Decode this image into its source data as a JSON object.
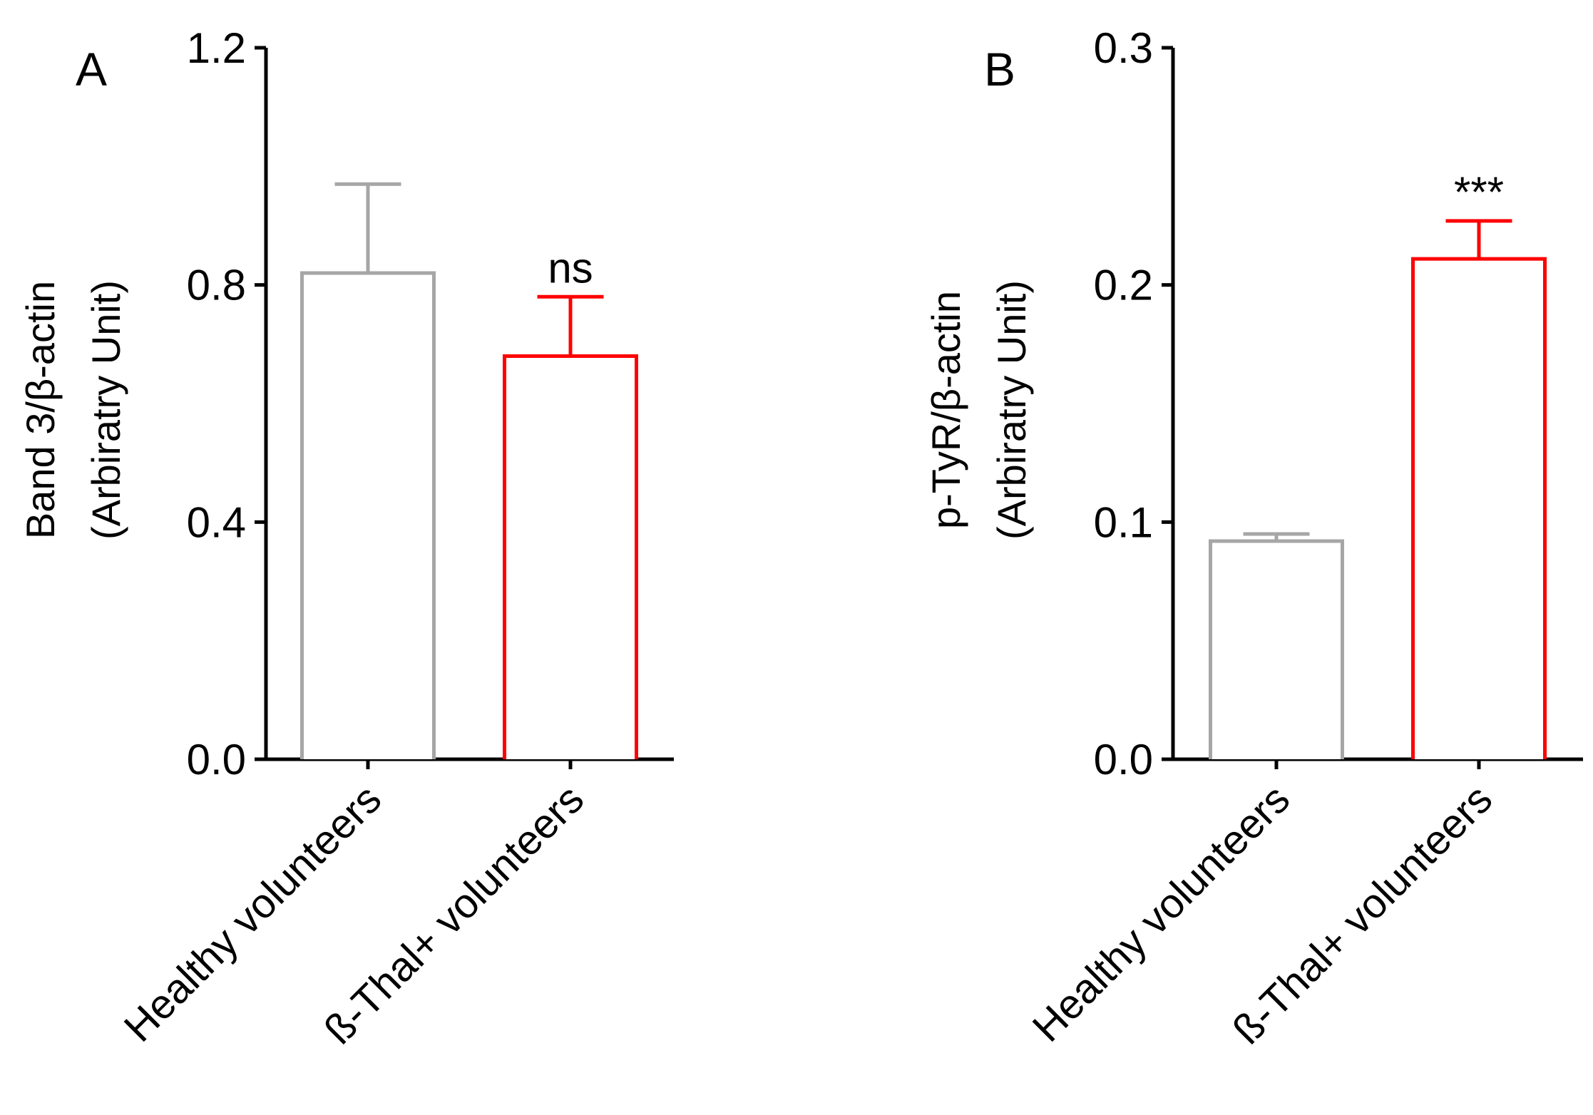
{
  "chart_data": [
    {
      "type": "bar",
      "panel_label": "A",
      "categories": [
        "Healthy volunteers",
        "ß-Thal+ volunteers"
      ],
      "values": [
        0.82,
        0.68
      ],
      "error_upper": [
        0.97,
        0.78
      ],
      "bar_colors": [
        "#a6a6a6",
        "#ff0000"
      ],
      "ylabel_lines": [
        "Band 3/β-actin",
        "(Arbiratry Unit)"
      ],
      "yticks": [
        "0.0",
        "0.4",
        "0.8",
        "1.2"
      ],
      "ytick_values": [
        0,
        0.4,
        0.8,
        1.2
      ],
      "ylim": [
        0,
        1.2
      ],
      "annotations": [
        {
          "category": "ß-Thal+ volunteers",
          "text": "ns"
        }
      ],
      "grid": false
    },
    {
      "type": "bar",
      "panel_label": "B",
      "categories": [
        "Healthy volunteers",
        "ß-Thal+ volunteers"
      ],
      "values": [
        0.092,
        0.211
      ],
      "error_upper": [
        0.095,
        0.227
      ],
      "bar_colors": [
        "#a6a6a6",
        "#ff0000"
      ],
      "ylabel_lines": [
        "p-TyR/β-actin",
        "(Arbiratry Unit)"
      ],
      "yticks": [
        "0.0",
        "0.1",
        "0.2",
        "0.3"
      ],
      "ytick_values": [
        0,
        0.1,
        0.2,
        0.3
      ],
      "ylim": [
        0,
        0.3
      ],
      "annotations": [
        {
          "category": "ß-Thal+ volunteers",
          "text": "***"
        }
      ],
      "grid": false
    }
  ]
}
